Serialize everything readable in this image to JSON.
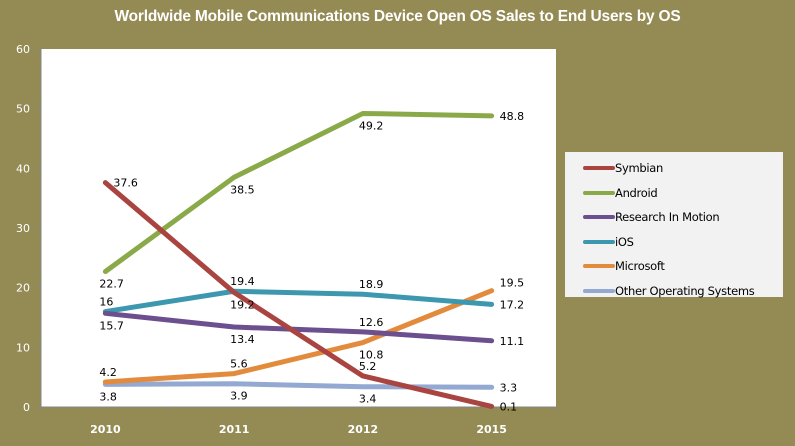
{
  "chart_data": {
    "type": "line",
    "title": "Worldwide Mobile Communications Device Open OS Sales to End Users by OS",
    "xlabel": "",
    "ylabel": "",
    "categories": [
      "2010",
      "2011",
      "2012",
      "2015"
    ],
    "ylim": [
      0,
      60
    ],
    "yticks": [
      "0",
      "10",
      "20",
      "30",
      "40",
      "50",
      "60"
    ],
    "grid": false,
    "legend_position": "right",
    "series": [
      {
        "name": "Symbian",
        "color": "#A94440",
        "values": [
          37.6,
          19.2,
          5.2,
          0.1
        ],
        "labels": [
          "37.6",
          "19.2",
          "5.2",
          "0.1"
        ],
        "label_pos": [
          "right",
          "below",
          "above",
          "right"
        ]
      },
      {
        "name": "Android",
        "color": "#8AAA4A",
        "values": [
          22.7,
          38.5,
          49.2,
          48.8
        ],
        "labels": [
          "22.7",
          "38.5",
          "49.2",
          "48.8"
        ],
        "label_pos": [
          "below",
          "below",
          "below",
          "right"
        ]
      },
      {
        "name": "Research In Motion",
        "color": "#6C4F8E",
        "values": [
          15.7,
          13.4,
          12.6,
          11.1
        ],
        "labels": [
          "15.7",
          "13.4",
          "12.6",
          "11.1"
        ],
        "label_pos": [
          "below",
          "below",
          "above",
          "right"
        ]
      },
      {
        "name": "iOS",
        "color": "#3D97AE",
        "values": [
          16,
          19.4,
          18.9,
          17.2
        ],
        "labels": [
          "16",
          "19.4",
          "18.9",
          "17.2"
        ],
        "label_pos": [
          "above",
          "above",
          "above",
          "right"
        ]
      },
      {
        "name": "Microsoft",
        "color": "#E38B3C",
        "values": [
          4.2,
          5.6,
          10.8,
          19.5
        ],
        "labels": [
          "4.2",
          "5.6",
          "10.8",
          "19.5"
        ],
        "label_pos": [
          "above",
          "above",
          "below",
          "above"
        ]
      },
      {
        "name": "Other Operating Systems",
        "color": "#93A9D1",
        "values": [
          3.8,
          3.9,
          3.4,
          3.3
        ],
        "labels": [
          "3.8",
          "3.9",
          "3.4",
          "3.3"
        ],
        "label_pos": [
          "below",
          "below",
          "below",
          "right"
        ]
      }
    ]
  }
}
